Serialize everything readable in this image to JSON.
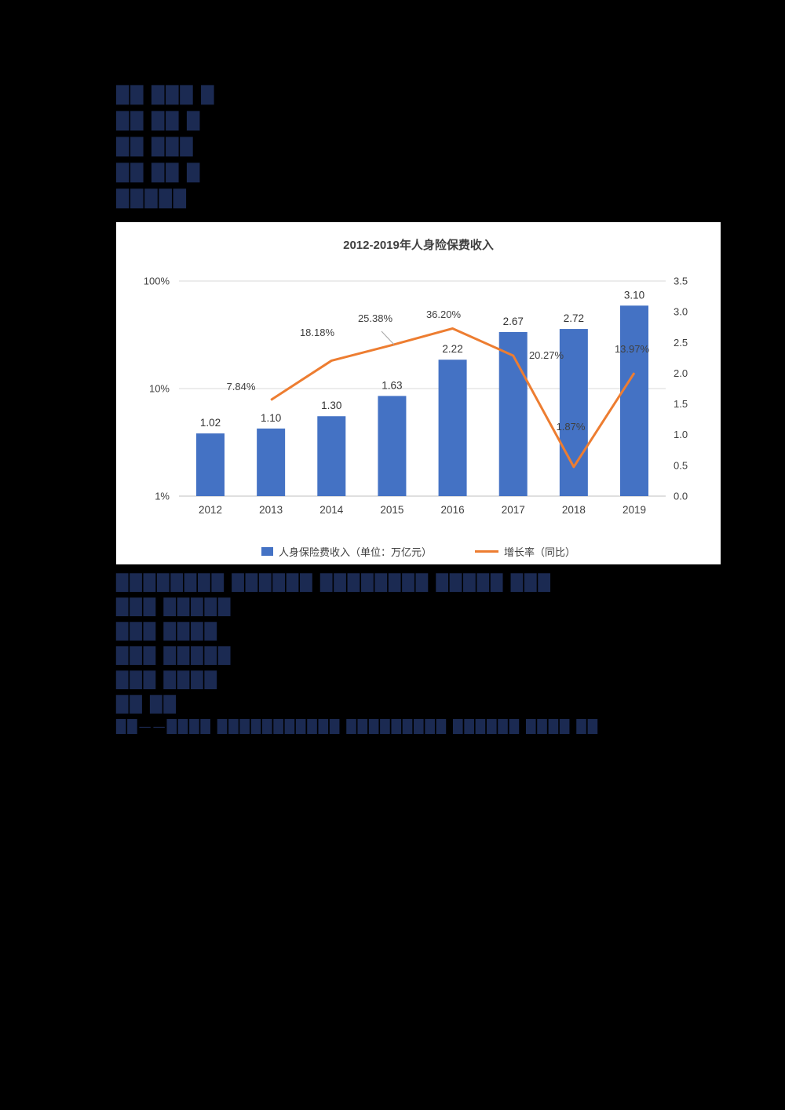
{
  "page": {
    "background": "#000000",
    "panel_background": "#ffffff"
  },
  "top_text_lines": [
    "██ ███ █",
    "██ ██ █",
    "██ ███",
    "██ ██ █",
    "█████"
  ],
  "bottom_text_lines": [
    "████████ ██████ ████████ █████ ███",
    "███ █████",
    "███ ████",
    "███ █████",
    "███ ████",
    "██ ██",
    "██——████ ███████████ █████████ ██████ ████ ██"
  ],
  "chart_data": {
    "type": "bar+line",
    "title": "2012-2019年人身险保费收入",
    "categories": [
      "2012",
      "2013",
      "2014",
      "2015",
      "2016",
      "2017",
      "2018",
      "2019"
    ],
    "series": [
      {
        "name": "人身保险费收入（单位：万亿元）",
        "type": "bar",
        "axis": "right",
        "color": "#4472C4",
        "values": [
          1.02,
          1.1,
          1.3,
          1.63,
          2.22,
          2.67,
          2.72,
          3.1
        ],
        "labels": [
          "1.02",
          "1.10",
          "1.30",
          "1.63",
          "2.22",
          "2.67",
          "2.72",
          "3.10"
        ]
      },
      {
        "name": "增长率（同比）",
        "type": "line",
        "axis": "left",
        "color": "#ED7D31",
        "values": [
          null,
          7.84,
          18.18,
          25.38,
          36.2,
          20.27,
          1.87,
          13.97
        ],
        "labels": [
          null,
          "7.84%",
          "18.18%",
          "25.38%",
          "36.20%",
          "20.27%",
          "1.87%",
          "13.97%"
        ]
      }
    ],
    "left_axis": {
      "scale": "log",
      "ticks": [
        "100%",
        "10%",
        "1%"
      ],
      "tick_values": [
        100,
        10,
        1
      ]
    },
    "right_axis": {
      "min": 0,
      "max": 3.5,
      "ticks": [
        "0.0",
        "0.5",
        "1.0",
        "1.5",
        "2.0",
        "2.5",
        "3.0",
        "3.5"
      ]
    },
    "legend_position": "bottom",
    "grid": true
  }
}
